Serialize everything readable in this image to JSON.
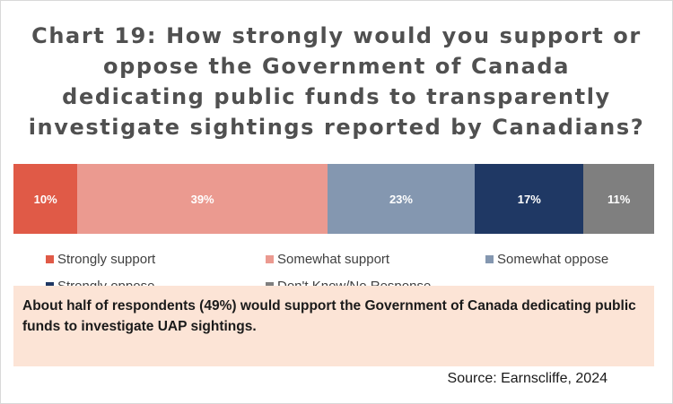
{
  "chart_data": {
    "type": "bar",
    "orientation": "horizontal-stacked-100",
    "title": "Chart 19: How strongly would you support or oppose the Government of Canada dedicating public funds to transparently investigate sightings reported by Canadians?",
    "title_lines": [
      "Chart 19: How strongly would you support or",
      "oppose the Government of Canada",
      "dedicating public funds to transparently",
      "investigate sightings reported by Canadians?"
    ],
    "series": [
      {
        "name": "Strongly support",
        "value": 10,
        "label": "10%",
        "color": "#e05a47"
      },
      {
        "name": "Somewhat support",
        "value": 39,
        "label": "39%",
        "color": "#eb9a90"
      },
      {
        "name": "Somewhat oppose",
        "value": 23,
        "label": "23%",
        "color": "#8497b0"
      },
      {
        "name": "Strongly oppose",
        "value": 17,
        "label": "17%",
        "color": "#1f3864"
      },
      {
        "name": "Don't Know/No Response",
        "value": 11,
        "label": "11%",
        "color": "#7f7f7f"
      }
    ],
    "legend_position": "bottom",
    "grid": false
  },
  "note": "About half of respondents (49%) would support the Government of Canada dedicating public funds to investigate UAP sightings.",
  "note_color": "#fce4d6",
  "source": "Source: Earnscliffe, 2024"
}
